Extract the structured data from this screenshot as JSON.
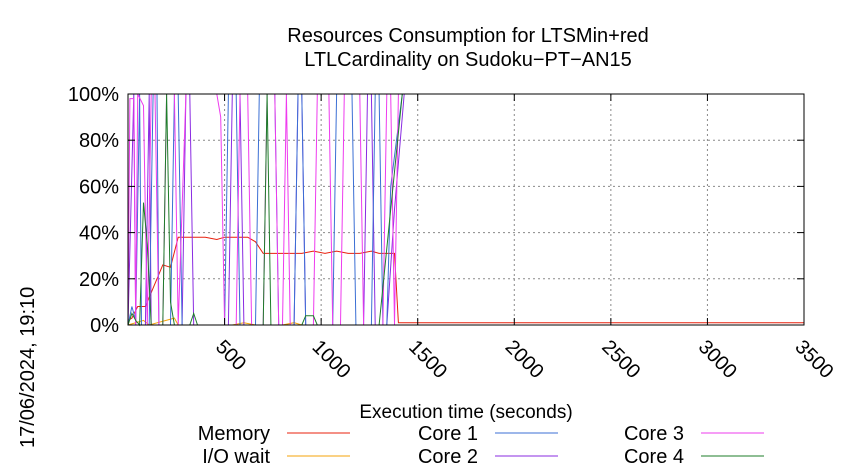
{
  "chart_data": {
    "type": "line",
    "title_lines": [
      "Resources Consumption for LTSMin+red",
      "LTLCardinality on Sudoku−PT−AN15"
    ],
    "xlabel": "Execution time (seconds)",
    "ylabel": "",
    "timestamp": "17/06/2024, 19:10",
    "xlim": [
      0,
      3500
    ],
    "ylim": [
      0,
      100
    ],
    "x_ticks": [
      "500",
      "1000",
      "1500",
      "2000",
      "2500",
      "3000",
      "3500"
    ],
    "y_ticks": [
      "0%",
      "20%",
      "40%",
      "60%",
      "80%",
      "100%"
    ],
    "grid": true,
    "legend_position": "bottom",
    "series": [
      {
        "name": "Memory",
        "color": "#e8200e",
        "points": [
          [
            0,
            2
          ],
          [
            20,
            3
          ],
          [
            50,
            8
          ],
          [
            90,
            8
          ],
          [
            150,
            20
          ],
          [
            180,
            26
          ],
          [
            220,
            25
          ],
          [
            260,
            38
          ],
          [
            300,
            38
          ],
          [
            360,
            38
          ],
          [
            400,
            38
          ],
          [
            460,
            37
          ],
          [
            500,
            38
          ],
          [
            580,
            38
          ],
          [
            620,
            38
          ],
          [
            660,
            36
          ],
          [
            700,
            31
          ],
          [
            760,
            31
          ],
          [
            820,
            31
          ],
          [
            880,
            31
          ],
          [
            900,
            31
          ],
          [
            960,
            32
          ],
          [
            1020,
            31
          ],
          [
            1080,
            32
          ],
          [
            1140,
            31
          ],
          [
            1200,
            31
          ],
          [
            1260,
            32
          ],
          [
            1300,
            31
          ],
          [
            1360,
            31
          ],
          [
            1380,
            31
          ],
          [
            1400,
            1
          ],
          [
            1440,
            1
          ],
          [
            2000,
            1
          ],
          [
            2740,
            1
          ],
          [
            3500,
            1
          ]
        ]
      },
      {
        "name": "I/O wait",
        "color": "#f5a30a",
        "points": [
          [
            0,
            0
          ],
          [
            80,
            2
          ],
          [
            110,
            0
          ],
          [
            240,
            3
          ],
          [
            260,
            0
          ],
          [
            540,
            0
          ],
          [
            600,
            1
          ],
          [
            660,
            0
          ],
          [
            800,
            0
          ],
          [
            860,
            1
          ],
          [
            900,
            0
          ],
          [
            1400,
            0
          ],
          [
            3500,
            0
          ]
        ]
      },
      {
        "name": "Core 1",
        "color": "#3b6fd4",
        "points": [
          [
            0,
            0
          ],
          [
            20,
            8
          ],
          [
            40,
            2
          ],
          [
            60,
            100
          ],
          [
            70,
            0
          ],
          [
            110,
            0
          ],
          [
            130,
            100
          ],
          [
            150,
            100
          ],
          [
            160,
            0
          ],
          [
            220,
            0
          ],
          [
            240,
            100
          ],
          [
            260,
            100
          ],
          [
            280,
            0
          ],
          [
            500,
            0
          ],
          [
            520,
            100
          ],
          [
            560,
            100
          ],
          [
            580,
            0
          ],
          [
            660,
            0
          ],
          [
            680,
            100
          ],
          [
            760,
            100
          ],
          [
            780,
            0
          ],
          [
            860,
            0
          ],
          [
            880,
            100
          ],
          [
            900,
            100
          ],
          [
            920,
            0
          ],
          [
            1060,
            0
          ],
          [
            1080,
            100
          ],
          [
            1160,
            100
          ],
          [
            1180,
            0
          ],
          [
            1260,
            0
          ],
          [
            1280,
            100
          ],
          [
            1300,
            100
          ],
          [
            1320,
            0
          ],
          [
            1340,
            0
          ],
          [
            1360,
            60
          ],
          [
            1420,
            100
          ],
          [
            3500,
            100
          ]
        ]
      },
      {
        "name": "Core 2",
        "color": "#8a2be2",
        "points": [
          [
            0,
            0
          ],
          [
            30,
            100
          ],
          [
            40,
            0
          ],
          [
            90,
            0
          ],
          [
            110,
            100
          ],
          [
            120,
            0
          ],
          [
            280,
            0
          ],
          [
            300,
            100
          ],
          [
            320,
            100
          ],
          [
            340,
            0
          ],
          [
            520,
            0
          ],
          [
            540,
            100
          ],
          [
            580,
            100
          ],
          [
            600,
            0
          ],
          [
            860,
            0
          ],
          [
            880,
            100
          ],
          [
            900,
            100
          ],
          [
            920,
            0
          ],
          [
            1220,
            0
          ],
          [
            1240,
            100
          ],
          [
            1260,
            100
          ],
          [
            1280,
            0
          ],
          [
            1340,
            0
          ],
          [
            1380,
            50
          ],
          [
            1430,
            100
          ],
          [
            3500,
            100
          ]
        ]
      },
      {
        "name": "Core 3",
        "color": "#ee3bee",
        "points": [
          [
            0,
            0
          ],
          [
            10,
            98
          ],
          [
            30,
            98
          ],
          [
            40,
            0
          ],
          [
            50,
            100
          ],
          [
            80,
            95
          ],
          [
            100,
            0
          ],
          [
            120,
            100
          ],
          [
            140,
            100
          ],
          [
            160,
            0
          ],
          [
            180,
            0
          ],
          [
            200,
            100
          ],
          [
            240,
            100
          ],
          [
            260,
            0
          ],
          [
            300,
            100
          ],
          [
            380,
            100
          ],
          [
            460,
            100
          ],
          [
            480,
            90
          ],
          [
            500,
            0
          ],
          [
            560,
            0
          ],
          [
            580,
            100
          ],
          [
            620,
            100
          ],
          [
            640,
            0
          ],
          [
            700,
            0
          ],
          [
            720,
            100
          ],
          [
            760,
            100
          ],
          [
            780,
            0
          ],
          [
            800,
            0
          ],
          [
            820,
            100
          ],
          [
            840,
            0
          ],
          [
            960,
            0
          ],
          [
            980,
            100
          ],
          [
            1040,
            100
          ],
          [
            1060,
            0
          ],
          [
            1100,
            0
          ],
          [
            1120,
            100
          ],
          [
            1200,
            100
          ],
          [
            1220,
            0
          ],
          [
            1320,
            0
          ],
          [
            1340,
            100
          ],
          [
            1360,
            100
          ],
          [
            1380,
            0
          ],
          [
            1400,
            100
          ],
          [
            3500,
            100
          ]
        ]
      },
      {
        "name": "Core 4",
        "color": "#1e7d2a",
        "points": [
          [
            0,
            0
          ],
          [
            20,
            5
          ],
          [
            40,
            2
          ],
          [
            60,
            0
          ],
          [
            80,
            53
          ],
          [
            100,
            35
          ],
          [
            120,
            0
          ],
          [
            180,
            0
          ],
          [
            200,
            100
          ],
          [
            220,
            10
          ],
          [
            240,
            0
          ],
          [
            320,
            0
          ],
          [
            340,
            5
          ],
          [
            360,
            0
          ],
          [
            700,
            0
          ],
          [
            720,
            100
          ],
          [
            740,
            0
          ],
          [
            900,
            0
          ],
          [
            920,
            4
          ],
          [
            960,
            4
          ],
          [
            980,
            0
          ],
          [
            1300,
            0
          ],
          [
            1360,
            50
          ],
          [
            1420,
            100
          ],
          [
            3500,
            100
          ]
        ]
      }
    ]
  }
}
